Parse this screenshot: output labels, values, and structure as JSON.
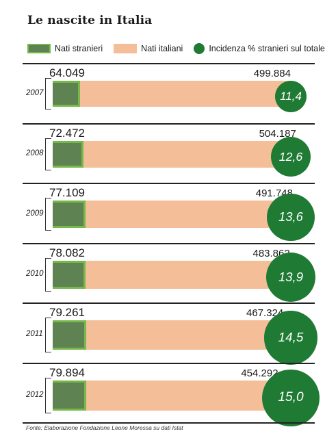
{
  "title": "Le nascite in Italia",
  "legend": {
    "stranieri": "Nati stranieri",
    "italiani": "Nati italiani",
    "incidenza": "Incidenza % stranieri sul totale"
  },
  "source": "Fonte: Elaborazione Fondazione Leone Moressa su dati Istat",
  "colors": {
    "stranieri_fill": "#5f8252",
    "stranieri_border": "#76b84a",
    "italiani": "#f4bf98",
    "incidenza": "#1f7a34"
  },
  "rows": [
    {
      "year": "2007",
      "stranieri": "64.049",
      "italiani": "499.884",
      "incidenza": "11,4"
    },
    {
      "year": "2008",
      "stranieri": "72.472",
      "italiani": "504.187",
      "incidenza": "12,6"
    },
    {
      "year": "2009",
      "stranieri": "77.109",
      "italiani": "491.748",
      "incidenza": "13,6"
    },
    {
      "year": "2010",
      "stranieri": "78.082",
      "italiani": "483.862",
      "incidenza": "13,9"
    },
    {
      "year": "2011",
      "stranieri": "79.261",
      "italiani": "467.324",
      "incidenza": "14,5"
    },
    {
      "year": "2012",
      "stranieri": "79.894",
      "italiani": "454.292",
      "incidenza": "15,0"
    }
  ],
  "chart_data": {
    "type": "bar",
    "title": "Le nascite in Italia",
    "categories": [
      "2007",
      "2008",
      "2009",
      "2010",
      "2011",
      "2012"
    ],
    "series": [
      {
        "name": "Nati stranieri",
        "values": [
          64049,
          72472,
          77109,
          78082,
          79261,
          79894
        ]
      },
      {
        "name": "Nati italiani",
        "values": [
          499884,
          504187,
          491748,
          483862,
          467324,
          454292
        ]
      },
      {
        "name": "Incidenza % stranieri sul totale",
        "values": [
          11.4,
          12.6,
          13.6,
          13.9,
          14.5,
          15.0
        ]
      }
    ],
    "legend_position": "top"
  }
}
